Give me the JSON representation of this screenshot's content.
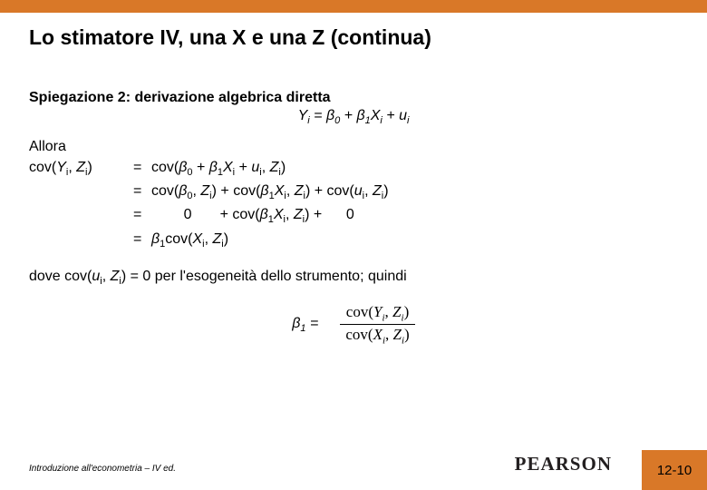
{
  "colors": {
    "accent": "#d97828",
    "text": "#000000",
    "background": "#ffffff"
  },
  "title": "Lo stimatore IV, una X e una Z (continua)",
  "subhead": "Spiegazione 2: derivazione algebrica diretta",
  "model_eq": {
    "lhs": "Yᵢ",
    "rhs": "β₀ + β₁Xᵢ + uᵢ"
  },
  "allora": "Allora",
  "deriv": {
    "lhs": "cov(Yᵢ, Zᵢ)",
    "rows": [
      "cov(β₀ + β₁Xᵢ + uᵢ, Zᵢ)",
      "cov(β₀, Zᵢ) + cov(β₁Xᵢ, Zᵢ) + cov(uᵢ, Zᵢ)",
      "      0      + cov(β₁Xᵢ, Zᵢ) +     0",
      "β₁cov(Xᵢ, Zᵢ)"
    ]
  },
  "dove": "dove cov(uᵢ, Zᵢ) = 0 per l'esogeneità dello strumento; quindi",
  "beta1": {
    "lhs": "β₁ =",
    "num": "cov(Yᵢ, Zᵢ)",
    "den": "cov(Xᵢ, Zᵢ)"
  },
  "footer": "Introduzione all'econometria – IV ed.",
  "brand": "PEARSON",
  "page": "12-10"
}
